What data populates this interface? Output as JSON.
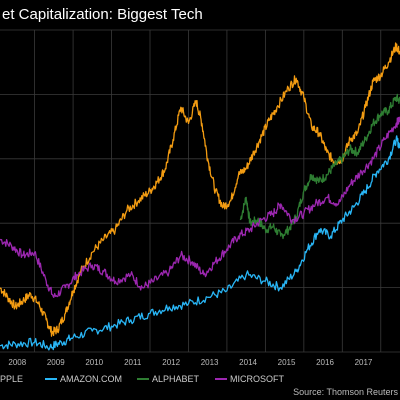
{
  "chart_data": {
    "type": "line",
    "title": "et Capitalization: Biggest Tech",
    "xlabel": "",
    "ylabel": "",
    "x_ticks": [
      "2008",
      "2009",
      "2010",
      "2011",
      "2012",
      "2013",
      "2014",
      "2015",
      "2016",
      "2017"
    ],
    "xlim": [
      2007.6,
      2018.0
    ],
    "ylim": [
      0,
      1
    ],
    "y_scale_note": "",
    "grid": true,
    "legend_position": "bottom",
    "source": "Source: Thomson Reuters",
    "series": [
      {
        "name": "PPLE",
        "color": "#f39c12",
        "points": [
          [
            2007.6,
            0.2
          ],
          [
            2007.8,
            0.17
          ],
          [
            2008.0,
            0.14
          ],
          [
            2008.2,
            0.16
          ],
          [
            2008.4,
            0.18
          ],
          [
            2008.6,
            0.15
          ],
          [
            2008.8,
            0.1
          ],
          [
            2008.95,
            0.06
          ],
          [
            2009.1,
            0.07
          ],
          [
            2009.3,
            0.12
          ],
          [
            2009.5,
            0.19
          ],
          [
            2009.7,
            0.25
          ],
          [
            2010.0,
            0.31
          ],
          [
            2010.3,
            0.35
          ],
          [
            2010.6,
            0.38
          ],
          [
            2010.9,
            0.44
          ],
          [
            2011.2,
            0.47
          ],
          [
            2011.5,
            0.5
          ],
          [
            2011.7,
            0.53
          ],
          [
            2011.9,
            0.57
          ],
          [
            2012.1,
            0.66
          ],
          [
            2012.3,
            0.76
          ],
          [
            2012.5,
            0.71
          ],
          [
            2012.7,
            0.78
          ],
          [
            2012.85,
            0.71
          ],
          [
            2013.0,
            0.6
          ],
          [
            2013.2,
            0.5
          ],
          [
            2013.4,
            0.45
          ],
          [
            2013.6,
            0.47
          ],
          [
            2013.8,
            0.55
          ],
          [
            2014.0,
            0.57
          ],
          [
            2014.2,
            0.62
          ],
          [
            2014.4,
            0.67
          ],
          [
            2014.6,
            0.72
          ],
          [
            2014.8,
            0.76
          ],
          [
            2015.1,
            0.82
          ],
          [
            2015.3,
            0.85
          ],
          [
            2015.5,
            0.79
          ],
          [
            2015.7,
            0.7
          ],
          [
            2015.9,
            0.68
          ],
          [
            2016.1,
            0.62
          ],
          [
            2016.3,
            0.59
          ],
          [
            2016.5,
            0.6
          ],
          [
            2016.7,
            0.66
          ],
          [
            2016.9,
            0.68
          ],
          [
            2017.1,
            0.76
          ],
          [
            2017.3,
            0.84
          ],
          [
            2017.5,
            0.86
          ],
          [
            2017.7,
            0.9
          ],
          [
            2017.9,
            0.95
          ],
          [
            2018.0,
            0.93
          ]
        ]
      },
      {
        "name": "AMAZON.COM",
        "color": "#29b6f6",
        "points": [
          [
            2007.6,
            0.02
          ],
          [
            2008.0,
            0.025
          ],
          [
            2008.5,
            0.03
          ],
          [
            2008.9,
            0.015
          ],
          [
            2009.2,
            0.03
          ],
          [
            2009.5,
            0.045
          ],
          [
            2010.0,
            0.065
          ],
          [
            2010.5,
            0.08
          ],
          [
            2011.0,
            0.1
          ],
          [
            2011.5,
            0.12
          ],
          [
            2012.0,
            0.14
          ],
          [
            2012.5,
            0.15
          ],
          [
            2013.0,
            0.17
          ],
          [
            2013.5,
            0.19
          ],
          [
            2014.0,
            0.24
          ],
          [
            2014.5,
            0.22
          ],
          [
            2014.9,
            0.2
          ],
          [
            2015.3,
            0.25
          ],
          [
            2015.6,
            0.32
          ],
          [
            2015.9,
            0.38
          ],
          [
            2016.2,
            0.36
          ],
          [
            2016.5,
            0.41
          ],
          [
            2016.8,
            0.45
          ],
          [
            2017.1,
            0.5
          ],
          [
            2017.4,
            0.56
          ],
          [
            2017.7,
            0.6
          ],
          [
            2017.9,
            0.66
          ],
          [
            2018.0,
            0.64
          ]
        ]
      },
      {
        "name": "ALPHABET",
        "color": "#2e7d32",
        "points": [
          [
            2013.85,
            0.41
          ],
          [
            2014.0,
            0.48
          ],
          [
            2014.1,
            0.4
          ],
          [
            2014.3,
            0.41
          ],
          [
            2014.5,
            0.38
          ],
          [
            2014.7,
            0.39
          ],
          [
            2014.9,
            0.36
          ],
          [
            2015.1,
            0.38
          ],
          [
            2015.3,
            0.42
          ],
          [
            2015.5,
            0.5
          ],
          [
            2015.7,
            0.55
          ],
          [
            2015.9,
            0.53
          ],
          [
            2016.1,
            0.55
          ],
          [
            2016.3,
            0.58
          ],
          [
            2016.5,
            0.6
          ],
          [
            2016.7,
            0.63
          ],
          [
            2016.9,
            0.62
          ],
          [
            2017.1,
            0.66
          ],
          [
            2017.3,
            0.71
          ],
          [
            2017.5,
            0.74
          ],
          [
            2017.7,
            0.75
          ],
          [
            2017.9,
            0.79
          ],
          [
            2018.0,
            0.78
          ]
        ]
      },
      {
        "name": "MICROSOFT",
        "color": "#9c27b0",
        "points": [
          [
            2007.6,
            0.35
          ],
          [
            2007.9,
            0.33
          ],
          [
            2008.2,
            0.3
          ],
          [
            2008.5,
            0.31
          ],
          [
            2008.8,
            0.22
          ],
          [
            2009.0,
            0.17
          ],
          [
            2009.3,
            0.2
          ],
          [
            2009.6,
            0.24
          ],
          [
            2010.0,
            0.27
          ],
          [
            2010.3,
            0.25
          ],
          [
            2010.6,
            0.22
          ],
          [
            2011.0,
            0.24
          ],
          [
            2011.3,
            0.2
          ],
          [
            2011.6,
            0.22
          ],
          [
            2012.0,
            0.25
          ],
          [
            2012.3,
            0.3
          ],
          [
            2012.6,
            0.28
          ],
          [
            2012.9,
            0.24
          ],
          [
            2013.2,
            0.28
          ],
          [
            2013.5,
            0.32
          ],
          [
            2013.8,
            0.36
          ],
          [
            2014.1,
            0.38
          ],
          [
            2014.4,
            0.41
          ],
          [
            2014.7,
            0.43
          ],
          [
            2014.9,
            0.46
          ],
          [
            2015.2,
            0.41
          ],
          [
            2015.5,
            0.43
          ],
          [
            2015.8,
            0.46
          ],
          [
            2016.1,
            0.48
          ],
          [
            2016.4,
            0.46
          ],
          [
            2016.7,
            0.52
          ],
          [
            2017.0,
            0.56
          ],
          [
            2017.3,
            0.6
          ],
          [
            2017.6,
            0.66
          ],
          [
            2017.9,
            0.71
          ],
          [
            2018.0,
            0.72
          ]
        ]
      }
    ]
  },
  "legend": [
    {
      "label": "PPLE",
      "color": "#f39c12"
    },
    {
      "label": "AMAZON.COM",
      "color": "#29b6f6"
    },
    {
      "label": "ALPHABET",
      "color": "#2e7d32"
    },
    {
      "label": "MICROSOFT",
      "color": "#9c27b0"
    }
  ]
}
